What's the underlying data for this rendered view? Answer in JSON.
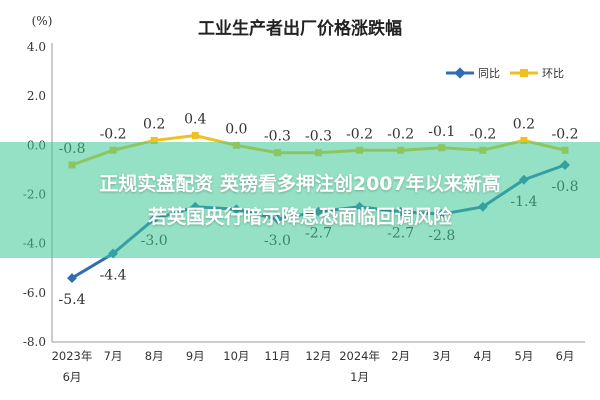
{
  "chart_data": {
    "type": "line",
    "title": "工业生产者出厂价格涨跌幅",
    "unit_label": "(%)",
    "ylim": [
      -8.0,
      4.0
    ],
    "yticks": [
      "4.0",
      "2.0",
      "0.0",
      "-2.0",
      "-4.0",
      "-6.0",
      "-8.0"
    ],
    "ytick_values": [
      4,
      2,
      0,
      -2,
      -4,
      -6,
      -8
    ],
    "grid": false,
    "legend_position": "top-right",
    "categories": [
      {
        "line1": "2023年",
        "line2": "6月"
      },
      {
        "line1": "7月",
        "line2": ""
      },
      {
        "line1": "8月",
        "line2": ""
      },
      {
        "line1": "9月",
        "line2": ""
      },
      {
        "line1": "10月",
        "line2": ""
      },
      {
        "line1": "11月",
        "line2": ""
      },
      {
        "line1": "12月",
        "line2": ""
      },
      {
        "line1": "2024年",
        "line2": "1月"
      },
      {
        "line1": "2月",
        "line2": ""
      },
      {
        "line1": "3月",
        "line2": ""
      },
      {
        "line1": "4月",
        "line2": ""
      },
      {
        "line1": "5月",
        "line2": ""
      },
      {
        "line1": "6月",
        "line2": ""
      }
    ],
    "series": [
      {
        "name": "同比",
        "color": "#2e6fb2",
        "values": [
          -5.4,
          -4.4,
          -3.0,
          -2.5,
          -2.6,
          -3.0,
          -2.7,
          -2.5,
          -2.7,
          -2.8,
          -2.5,
          -1.4,
          -0.8
        ],
        "labels": [
          "-5.4",
          "-4.4",
          "-3.0",
          "",
          "",
          "-3.0",
          "-2.7",
          "",
          "-2.7",
          "-2.8",
          "",
          "-1.4",
          "-0.8"
        ]
      },
      {
        "name": "环比",
        "color": "#f0c020",
        "values": [
          -0.8,
          -0.2,
          0.2,
          0.4,
          0.0,
          -0.3,
          -0.3,
          -0.2,
          -0.2,
          -0.1,
          -0.2,
          0.2,
          -0.2
        ],
        "labels": [
          "-0.8",
          "-0.2",
          "0.2",
          "0.4",
          "0.0",
          "-0.3",
          "-0.3",
          "-0.2",
          "-0.2",
          "-0.1",
          "-0.2",
          "0.2",
          "-0.2"
        ]
      }
    ]
  },
  "overlay": {
    "line1": "正规实盘配资 英镑看多押注创2007年以来新高",
    "line2": "若英国央行暗示降息恐面临回调风险"
  }
}
